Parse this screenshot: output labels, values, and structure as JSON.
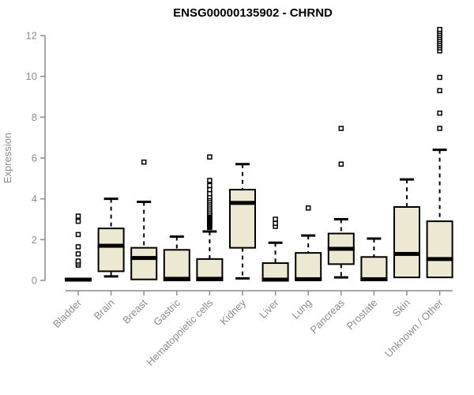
{
  "chart_data": {
    "type": "boxplot",
    "title": "ENSG00000135902 - CHRND",
    "ylabel": "Expression",
    "xlabel": "",
    "ylim": [
      0,
      12
    ],
    "yticks": [
      0,
      2,
      4,
      6,
      8,
      10,
      12
    ],
    "grid": false,
    "legend": false,
    "categories": [
      "Bladder",
      "Brain",
      "Breast",
      "Gastric",
      "Hematopoietic cells",
      "Kidney",
      "Liver",
      "Lung",
      "Pancreas",
      "Prostate",
      "Skin",
      "Unknown / Other"
    ],
    "series": [
      {
        "name": "Bladder",
        "low": 0,
        "q1": 0,
        "median": 0.04,
        "q3": 0.08,
        "high": 0.08,
        "outliers": [
          0.75,
          0.85,
          0.95,
          1.3,
          1.65,
          2.25,
          2.9,
          3.15
        ]
      },
      {
        "name": "Brain",
        "low": 0.2,
        "q1": 0.45,
        "median": 1.7,
        "q3": 2.55,
        "high": 4.0,
        "outliers": []
      },
      {
        "name": "Breast",
        "low": 0.05,
        "q1": 0.05,
        "median": 1.1,
        "q3": 1.6,
        "high": 3.85,
        "outliers": [
          5.8
        ]
      },
      {
        "name": "Gastric",
        "low": 0,
        "q1": 0,
        "median": 0.08,
        "q3": 1.5,
        "high": 2.15,
        "outliers": []
      },
      {
        "name": "Hematopoietic cells",
        "low": 0,
        "q1": 0,
        "median": 0.08,
        "q3": 1.05,
        "high": 2.4,
        "outliers": [
          2.6,
          2.65,
          2.7,
          2.75,
          2.8,
          2.85,
          2.9,
          2.95,
          3.0,
          3.05,
          3.1,
          3.15,
          3.2,
          3.25,
          3.3,
          3.4,
          3.5,
          3.6,
          3.7,
          3.8,
          3.9,
          4.0,
          4.1,
          4.25,
          4.45,
          4.65,
          4.9,
          6.05
        ]
      },
      {
        "name": "Kidney",
        "low": 0.1,
        "q1": 1.6,
        "median": 3.8,
        "q3": 4.45,
        "high": 5.7,
        "outliers": []
      },
      {
        "name": "Liver",
        "low": 0,
        "q1": 0,
        "median": 0.04,
        "q3": 0.85,
        "high": 1.85,
        "outliers": [
          2.65,
          2.8,
          3.0
        ]
      },
      {
        "name": "Lung",
        "low": 0,
        "q1": 0,
        "median": 0.06,
        "q3": 1.35,
        "high": 2.2,
        "outliers": [
          3.55
        ]
      },
      {
        "name": "Pancreas",
        "low": 0.15,
        "q1": 0.8,
        "median": 1.55,
        "q3": 2.3,
        "high": 3.0,
        "outliers": [
          5.7,
          7.45
        ]
      },
      {
        "name": "Prostate",
        "low": 0,
        "q1": 0,
        "median": 0.06,
        "q3": 1.15,
        "high": 2.05,
        "outliers": []
      },
      {
        "name": "Skin",
        "low": 0.15,
        "q1": 0.15,
        "median": 1.3,
        "q3": 3.6,
        "high": 4.95,
        "outliers": []
      },
      {
        "name": "Unknown / Other",
        "low": 0.15,
        "q1": 0.15,
        "median": 1.05,
        "q3": 2.9,
        "high": 6.4,
        "outliers": [
          7.45,
          8.2,
          9.3,
          9.95,
          11.25,
          11.4,
          11.5,
          11.6,
          11.7,
          11.8,
          11.9,
          12.0,
          12.1,
          12.2,
          12.3
        ]
      }
    ]
  },
  "colors": {
    "box_fill": "#EDE8D1",
    "box_stroke": "#000000",
    "median": "#000000",
    "axis": "#8C8C8C",
    "tick_label": "#8C8C8C",
    "title": "#000000",
    "background": "#FFFFFF"
  }
}
